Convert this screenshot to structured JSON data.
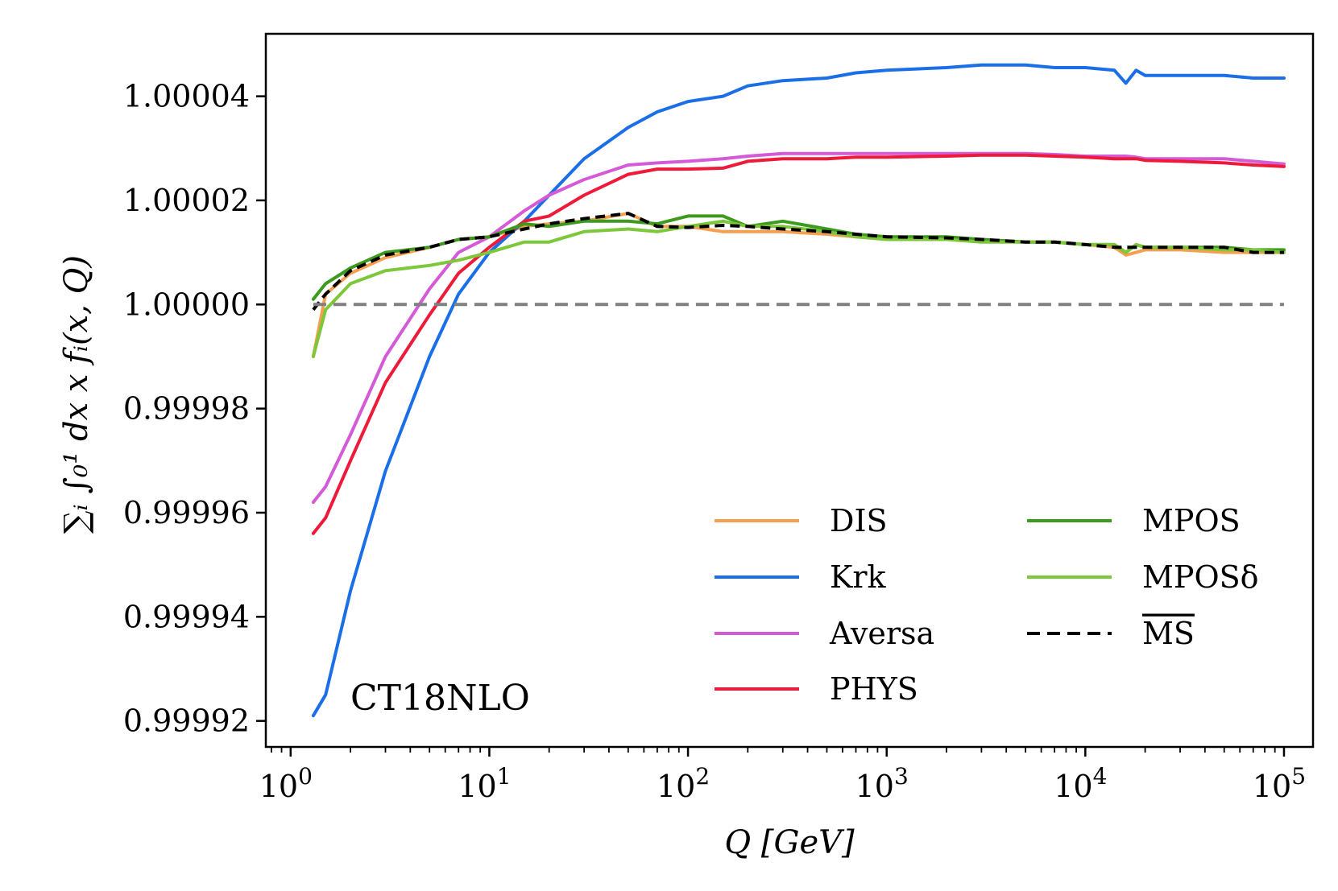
{
  "chart_data": {
    "type": "line",
    "title": "",
    "xlabel": "Q [GeV]",
    "ylabel": "∑ᵢ ∫₀¹ dx x fᵢ(x, Q)",
    "xscale": "log",
    "xlim": [
      0.75,
      140000
    ],
    "ylim": [
      0.999915,
      1.000052
    ],
    "grid": false,
    "annotation": "CT18NLO",
    "legend_position": "lower-right",
    "x_ticks": [
      {
        "value": 1,
        "base": "10",
        "exp": "0"
      },
      {
        "value": 10,
        "base": "10",
        "exp": "1"
      },
      {
        "value": 100,
        "base": "10",
        "exp": "2"
      },
      {
        "value": 1000,
        "base": "10",
        "exp": "3"
      },
      {
        "value": 10000,
        "base": "10",
        "exp": "4"
      },
      {
        "value": 100000,
        "base": "10",
        "exp": "5"
      }
    ],
    "y_ticks": [
      {
        "value": 0.99992,
        "label": "0.99992"
      },
      {
        "value": 0.99994,
        "label": "0.99994"
      },
      {
        "value": 0.99996,
        "label": "0.99996"
      },
      {
        "value": 0.99998,
        "label": "0.99998"
      },
      {
        "value": 1.0,
        "label": "1.00000"
      },
      {
        "value": 1.00002,
        "label": "1.00002"
      },
      {
        "value": 1.00004,
        "label": "1.00004"
      }
    ],
    "reference_line": {
      "y": 1.0,
      "color": "#808080",
      "style": "dashed"
    },
    "x": [
      1.3,
      1.5,
      2,
      3,
      5,
      7,
      10,
      15,
      20,
      30,
      50,
      70,
      100,
      150,
      200,
      300,
      500,
      700,
      1000,
      2000,
      3000,
      5000,
      7000,
      10000,
      14000,
      16000,
      18000,
      20000,
      30000,
      50000,
      70000,
      100000
    ],
    "series": [
      {
        "name": "DIS",
        "color": "#f5a050",
        "style": "solid",
        "values": [
          0.99999,
          1.000002,
          1.000006,
          1.000009,
          1.000011,
          1.0000125,
          1.000013,
          1.000015,
          1.0000155,
          1.000016,
          1.0000175,
          1.000015,
          1.000015,
          1.000014,
          1.000014,
          1.000014,
          1.0000135,
          1.000013,
          1.000013,
          1.0000125,
          1.0000125,
          1.000012,
          1.000012,
          1.0000115,
          1.000011,
          1.0000095,
          1.00001,
          1.0000105,
          1.0000105,
          1.00001,
          1.00001,
          1.00001
        ]
      },
      {
        "name": "Krk",
        "color": "#1a6fe8",
        "style": "solid",
        "values": [
          0.999921,
          0.999925,
          0.999945,
          0.999968,
          0.99999,
          1.000002,
          1.00001,
          1.000016,
          1.000021,
          1.000028,
          1.000034,
          1.000037,
          1.000039,
          1.00004,
          1.000042,
          1.000043,
          1.0000435,
          1.0000445,
          1.000045,
          1.0000455,
          1.000046,
          1.000046,
          1.0000455,
          1.0000455,
          1.000045,
          1.0000425,
          1.000045,
          1.000044,
          1.000044,
          1.000044,
          1.0000435,
          1.0000435
        ]
      },
      {
        "name": "Aversa",
        "color": "#d45ad8",
        "style": "solid",
        "values": [
          0.999962,
          0.999965,
          0.999975,
          0.99999,
          1.000003,
          1.00001,
          1.000013,
          1.000018,
          1.000021,
          1.000024,
          1.0000268,
          1.0000272,
          1.0000275,
          1.000028,
          1.0000285,
          1.000029,
          1.000029,
          1.000029,
          1.000029,
          1.000029,
          1.000029,
          1.000029,
          1.0000288,
          1.0000285,
          1.0000285,
          1.0000285,
          1.0000283,
          1.000028,
          1.000028,
          1.000028,
          1.0000275,
          1.000027
        ]
      },
      {
        "name": "PHYS",
        "color": "#ee1a3a",
        "style": "solid",
        "values": [
          0.999956,
          0.999959,
          0.99997,
          0.999985,
          0.999998,
          1.000006,
          1.000011,
          1.000016,
          1.000017,
          1.000021,
          1.000025,
          1.000026,
          1.000026,
          1.0000262,
          1.0000275,
          1.000028,
          1.000028,
          1.0000283,
          1.0000283,
          1.0000285,
          1.0000287,
          1.0000287,
          1.0000285,
          1.0000283,
          1.000028,
          1.000028,
          1.000028,
          1.0000277,
          1.0000275,
          1.0000272,
          1.0000268,
          1.0000265
        ]
      },
      {
        "name": "MPOS",
        "color": "#3c9a1e",
        "style": "solid",
        "values": [
          1.000001,
          1.000004,
          1.000007,
          1.00001,
          1.000011,
          1.0000125,
          1.000013,
          1.0000155,
          1.000015,
          1.000016,
          1.000016,
          1.0000155,
          1.000017,
          1.000017,
          1.000015,
          1.000016,
          1.0000145,
          1.0000135,
          1.000013,
          1.000013,
          1.0000125,
          1.000012,
          1.000012,
          1.0000115,
          1.0000115,
          1.00001,
          1.0000115,
          1.000011,
          1.000011,
          1.000011,
          1.0000105,
          1.0000105
        ]
      },
      {
        "name": "MPOSδ",
        "color": "#7cc83a",
        "style": "solid",
        "values": [
          0.99999,
          0.999999,
          1.000004,
          1.0000065,
          1.0000075,
          1.0000085,
          1.00001,
          1.000012,
          1.000012,
          1.000014,
          1.0000145,
          1.000014,
          1.000015,
          1.000016,
          1.000015,
          1.000015,
          1.000014,
          1.000013,
          1.0000125,
          1.0000125,
          1.000012,
          1.000012,
          1.000012,
          1.0000115,
          1.0000115,
          1.00001,
          1.0000115,
          1.000011,
          1.000011,
          1.0000105,
          1.0000105,
          1.00001
        ]
      },
      {
        "name": "MS",
        "overline": true,
        "color": "#000000",
        "style": "dashed",
        "values": [
          0.999999,
          1.000002,
          1.0000065,
          1.0000095,
          1.000011,
          1.0000125,
          1.000013,
          1.0000145,
          1.0000155,
          1.0000165,
          1.0000175,
          1.000015,
          1.0000148,
          1.0000152,
          1.000015,
          1.0000145,
          1.000014,
          1.0000135,
          1.000013,
          1.0000128,
          1.0000125,
          1.000012,
          1.000012,
          1.0000115,
          1.000011,
          1.000011,
          1.000011,
          1.000011,
          1.000011,
          1.000011,
          1.00001,
          1.00001
        ]
      }
    ]
  }
}
